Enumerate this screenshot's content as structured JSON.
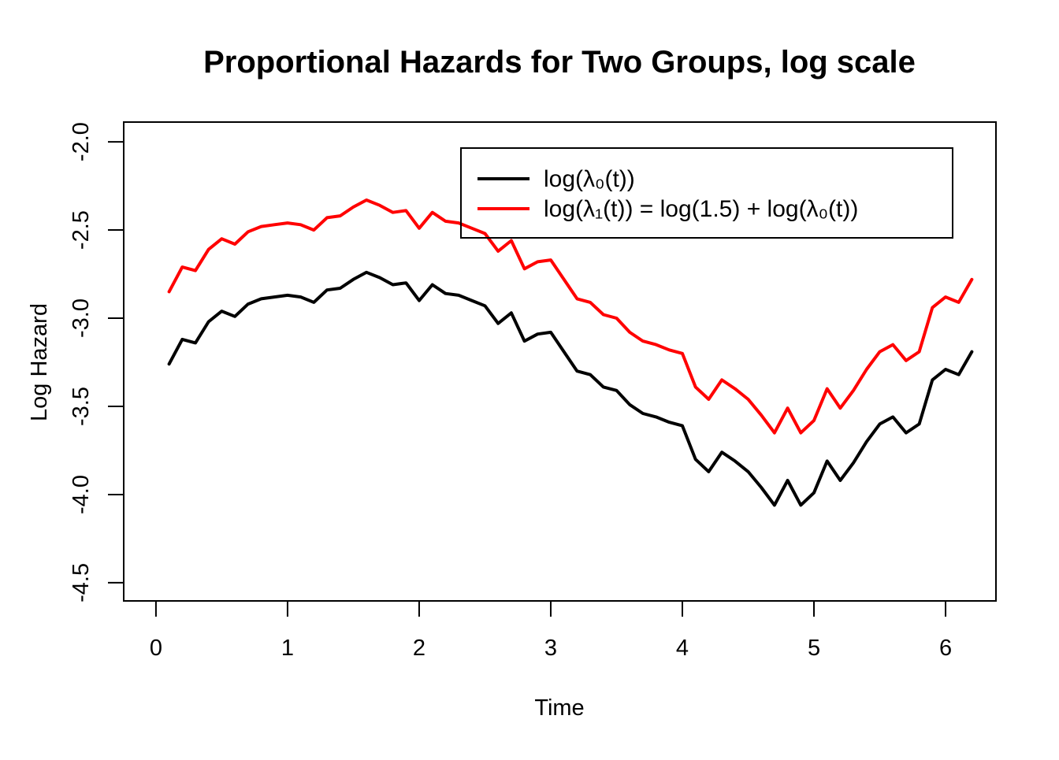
{
  "chart_data": {
    "type": "line",
    "title": "Proportional Hazards for Two Groups, log scale",
    "xlabel": "Time",
    "ylabel": "Log Hazard",
    "x_ticks": [
      0,
      1,
      2,
      3,
      4,
      5,
      6
    ],
    "x_tick_labels": [
      "0",
      "1",
      "2",
      "3",
      "4",
      "5",
      "6"
    ],
    "y_ticks": [
      -4.5,
      -4.0,
      -3.5,
      -3.0,
      -2.5,
      -2.0
    ],
    "y_tick_labels": [
      "-4.5",
      "-4.0",
      "-3.5",
      "-3.0",
      "-2.5",
      "-2.0"
    ],
    "xlim": [
      -0.245,
      6.383
    ],
    "ylim": [
      -4.603,
      -1.888
    ],
    "grid": false,
    "legend_position": "topright",
    "background": "#ffffff",
    "axis_color": "#000000",
    "x": [
      0.1,
      0.2,
      0.3,
      0.4,
      0.5,
      0.6,
      0.7,
      0.8,
      0.9,
      1.0,
      1.1,
      1.2,
      1.3,
      1.4,
      1.5,
      1.6,
      1.7,
      1.8,
      1.9,
      2.0,
      2.1,
      2.2,
      2.3,
      2.4,
      2.5,
      2.6,
      2.7,
      2.8,
      2.9,
      3.0,
      3.1,
      3.2,
      3.3,
      3.4,
      3.5,
      3.6,
      3.7,
      3.8,
      3.9,
      4.0,
      4.1,
      4.2,
      4.3,
      4.4,
      4.5,
      4.6,
      4.7,
      4.8,
      4.9,
      5.0,
      5.1,
      5.2,
      5.3,
      5.4,
      5.5,
      5.6,
      5.7,
      5.8,
      5.9,
      6.0,
      6.1,
      6.2
    ],
    "series": [
      {
        "name": "log(λ₀(t))",
        "color": "#000000",
        "values": [
          -3.26,
          -3.12,
          -3.14,
          -3.02,
          -2.96,
          -2.99,
          -2.92,
          -2.89,
          -2.88,
          -2.87,
          -2.88,
          -2.91,
          -2.84,
          -2.83,
          -2.78,
          -2.74,
          -2.77,
          -2.81,
          -2.8,
          -2.9,
          -2.81,
          -2.86,
          -2.87,
          -2.9,
          -2.93,
          -3.03,
          -2.97,
          -3.13,
          -3.09,
          -3.08,
          -3.19,
          -3.3,
          -3.32,
          -3.39,
          -3.41,
          -3.49,
          -3.54,
          -3.56,
          -3.59,
          -3.61,
          -3.8,
          -3.87,
          -3.76,
          -3.81,
          -3.87,
          -3.96,
          -4.06,
          -3.92,
          -4.06,
          -3.99,
          -3.81,
          -3.92,
          -3.82,
          -3.7,
          -3.6,
          -3.56,
          -3.65,
          -3.6,
          -3.35,
          -3.29,
          -3.32,
          -3.19
        ]
      },
      {
        "name": "log(λ₁(t)) = log(1.5) + log(λ₀(t))",
        "color": "#FF0000",
        "values": [
          -2.85,
          -2.71,
          -2.73,
          -2.61,
          -2.55,
          -2.58,
          -2.51,
          -2.48,
          -2.47,
          -2.46,
          -2.47,
          -2.5,
          -2.43,
          -2.42,
          -2.37,
          -2.33,
          -2.36,
          -2.4,
          -2.39,
          -2.49,
          -2.4,
          -2.45,
          -2.46,
          -2.49,
          -2.52,
          -2.62,
          -2.56,
          -2.72,
          -2.68,
          -2.67,
          -2.78,
          -2.89,
          -2.91,
          -2.98,
          -3.0,
          -3.08,
          -3.13,
          -3.15,
          -3.18,
          -3.2,
          -3.39,
          -3.46,
          -3.35,
          -3.4,
          -3.46,
          -3.55,
          -3.65,
          -3.51,
          -3.65,
          -3.58,
          -3.4,
          -3.51,
          -3.41,
          -3.29,
          -3.19,
          -3.15,
          -3.24,
          -3.19,
          -2.94,
          -2.88,
          -2.91,
          -2.78
        ]
      }
    ]
  }
}
